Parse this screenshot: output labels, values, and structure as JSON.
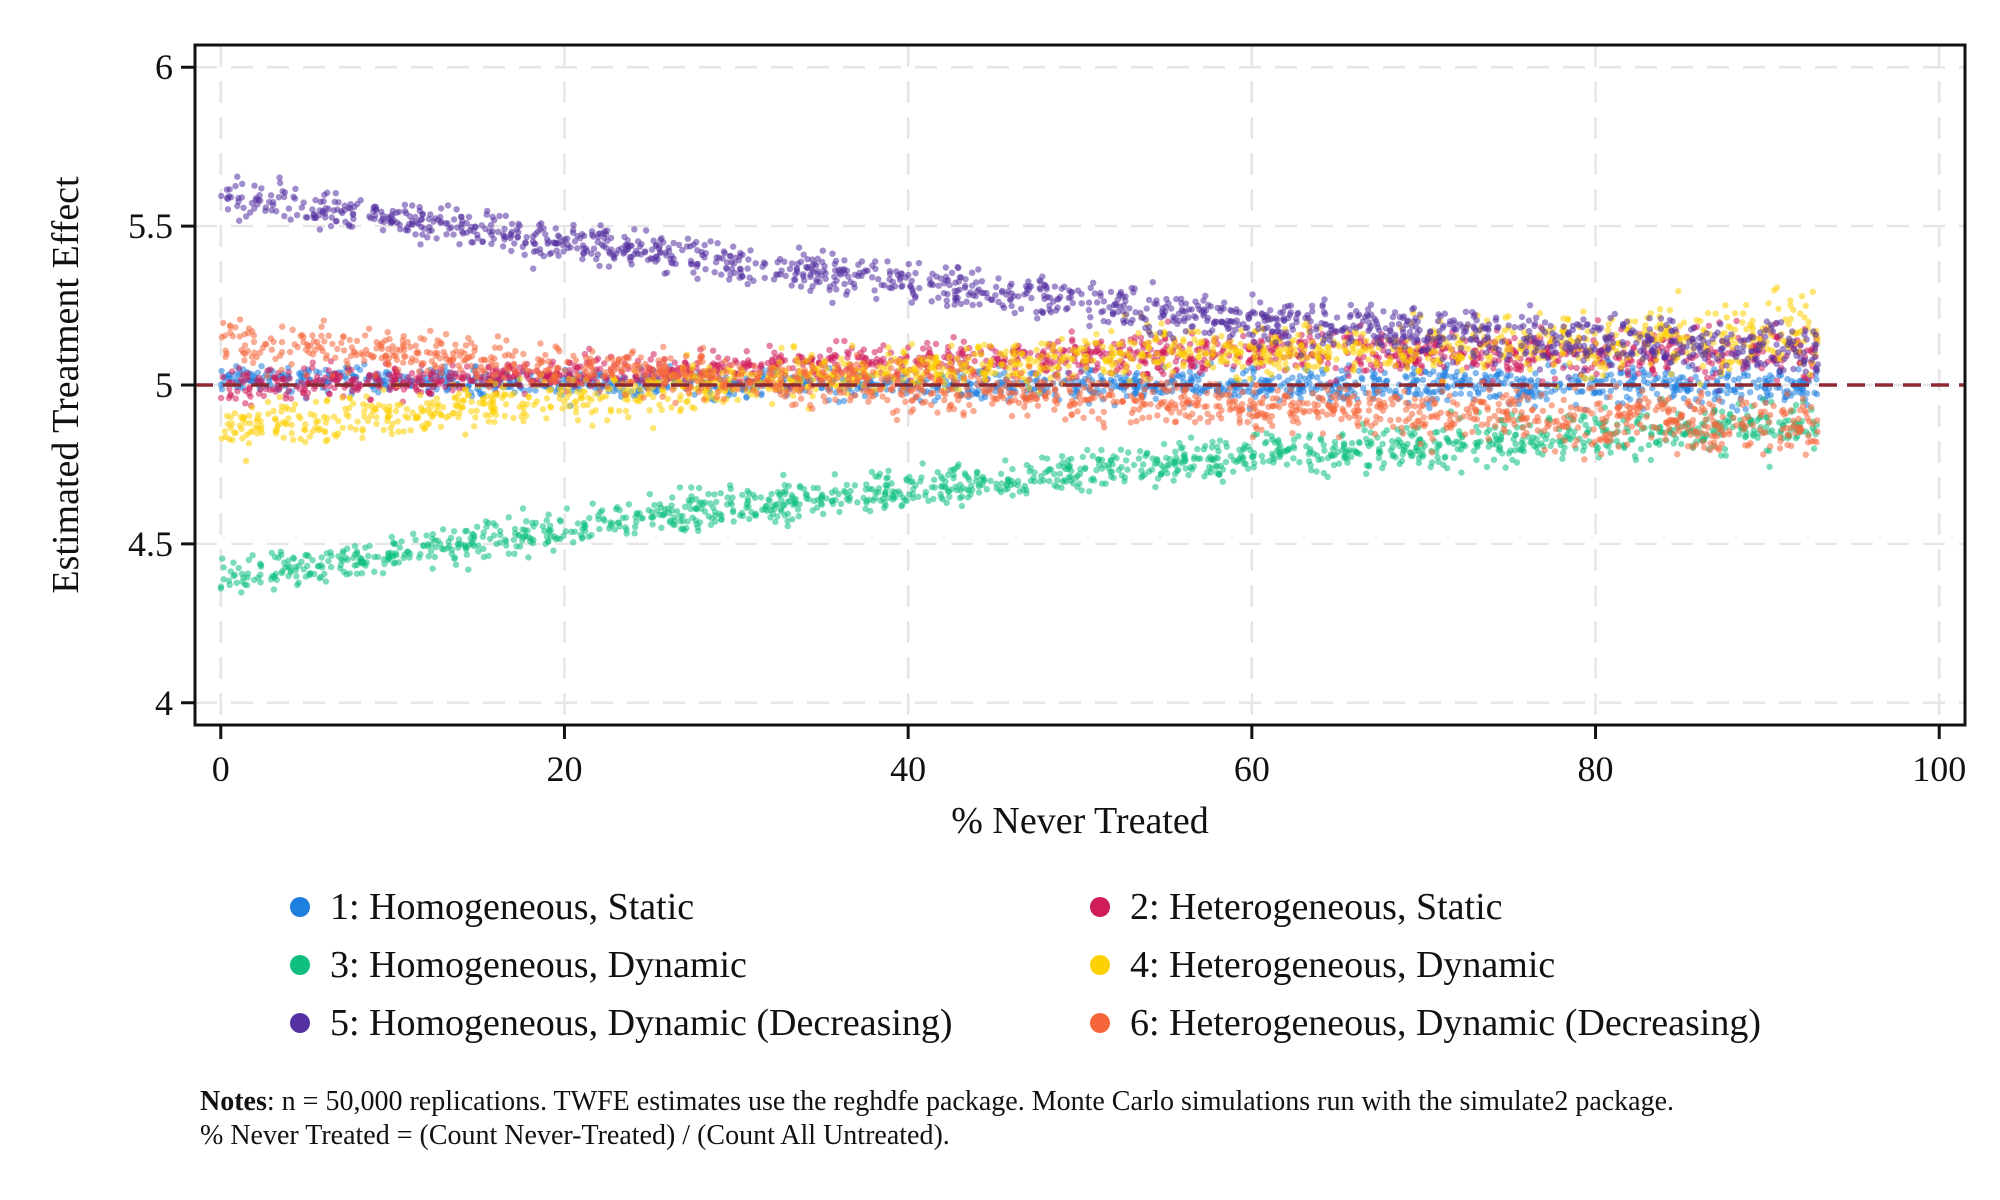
{
  "chart_data": {
    "type": "scatter",
    "xlabel": "% Never Treated",
    "ylabel": "Estimated Treatment Effect",
    "xlim": [
      -1.5,
      101.5
    ],
    "ylim": [
      3.93,
      6.07
    ],
    "xticks": [
      0,
      20,
      40,
      60,
      80,
      100
    ],
    "yticks": [
      4,
      4.5,
      5,
      5.5,
      6
    ],
    "ytick_labels": [
      "4",
      "4.5",
      "5",
      "5.5",
      "6"
    ],
    "grid": true,
    "reference_line": {
      "y": 5,
      "color": "#8b2a32",
      "style": "dashed"
    },
    "x_range_of_points": [
      0,
      93
    ],
    "legend_position": "bottom",
    "series": [
      {
        "name": "1: Homogeneous, Static",
        "color": "#1f7fe0",
        "trend": [
          [
            0,
            5.02
          ],
          [
            30,
            5.0
          ],
          [
            60,
            5.0
          ],
          [
            93,
            5.0
          ]
        ],
        "spread": [
          0.04,
          0.04,
          0.05,
          0.07
        ]
      },
      {
        "name": "2: Heterogeneous, Static",
        "color": "#d01c5b",
        "trend": [
          [
            0,
            4.99
          ],
          [
            30,
            5.06
          ],
          [
            55,
            5.1
          ],
          [
            93,
            5.1
          ]
        ],
        "spread": [
          0.05,
          0.05,
          0.06,
          0.08
        ]
      },
      {
        "name": "3: Homogeneous, Dynamic",
        "color": "#0fbf7f",
        "trend": [
          [
            0,
            4.39
          ],
          [
            30,
            4.62
          ],
          [
            60,
            4.78
          ],
          [
            93,
            4.88
          ]
        ],
        "spread": [
          0.06,
          0.06,
          0.06,
          0.08
        ]
      },
      {
        "name": "4: Heterogeneous, Dynamic",
        "color": "#fdd000",
        "trend": [
          [
            0,
            4.86
          ],
          [
            30,
            5.01
          ],
          [
            50,
            5.09
          ],
          [
            75,
            5.12
          ],
          [
            93,
            5.15
          ]
        ],
        "spread": [
          0.07,
          0.07,
          0.08,
          0.09,
          0.12
        ]
      },
      {
        "name": "5: Homogeneous, Dynamic (Decreasing)",
        "color": "#5430a0",
        "trend": [
          [
            0,
            5.6
          ],
          [
            30,
            5.38
          ],
          [
            60,
            5.2
          ],
          [
            93,
            5.1
          ]
        ],
        "spread": [
          0.06,
          0.06,
          0.07,
          0.09
        ]
      },
      {
        "name": "6: Heterogeneous, Dynamic (Decreasing)",
        "color": "#f5663a",
        "trend": [
          [
            0,
            5.14
          ],
          [
            30,
            5.02
          ],
          [
            60,
            4.93
          ],
          [
            93,
            4.87
          ]
        ],
        "spread": [
          0.07,
          0.07,
          0.07,
          0.1
        ]
      }
    ]
  },
  "notes": {
    "label": "Notes",
    "line1": ": n = 50,000 replications. TWFE estimates use the reghdfe package. Monte Carlo simulations run with the simulate2 package.",
    "line2": "% Never Treated = (Count Never-Treated) / (Count All Untreated)."
  }
}
